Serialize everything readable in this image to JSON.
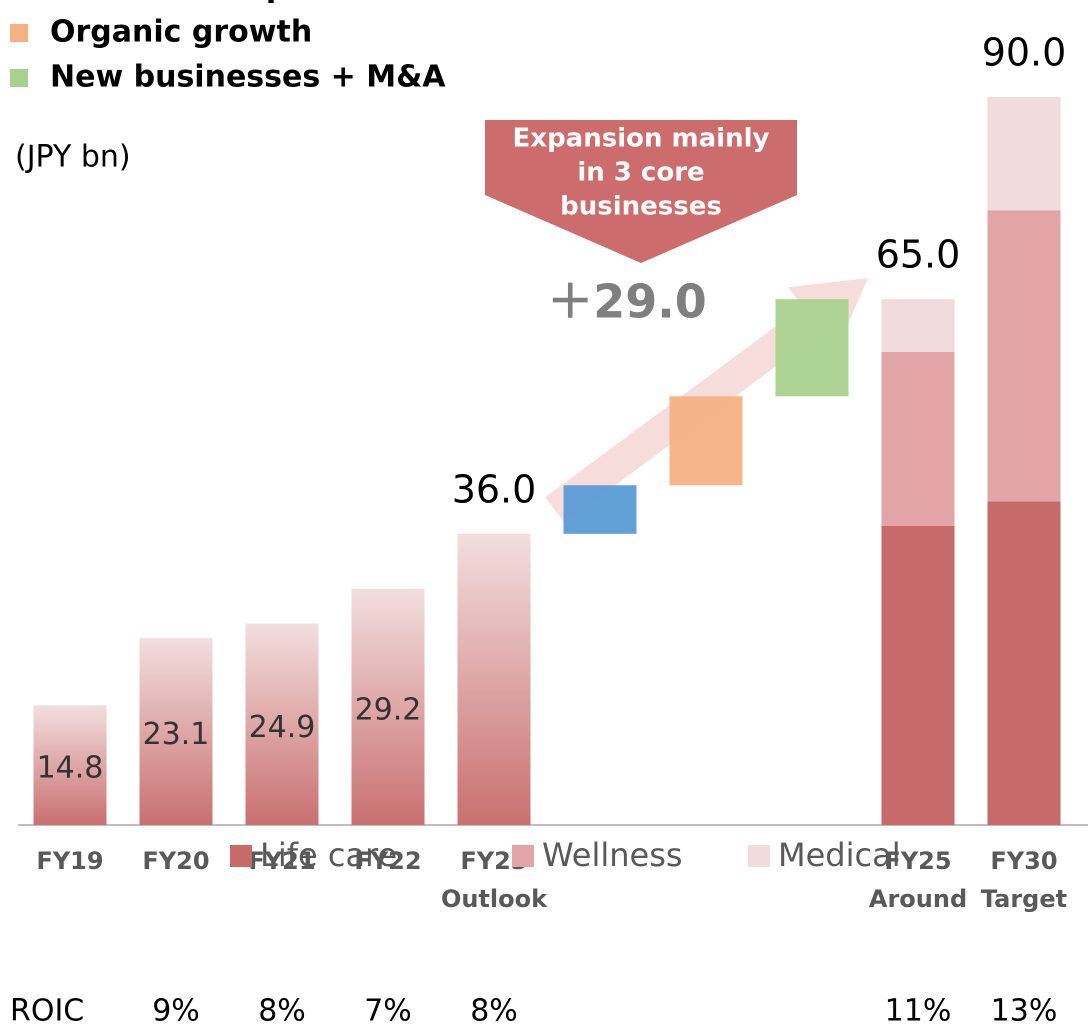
{
  "chart_data": {
    "type": "bar",
    "unit_label": "(JPY bn)",
    "categories": [
      "FY19",
      "FY20",
      "FY21",
      "FY22",
      [
        "FY23",
        "Outlook"
      ],
      null,
      null,
      null,
      [
        "FY25",
        "Around"
      ],
      [
        "FY30",
        "Target"
      ]
    ],
    "totals": [
      14.8,
      23.1,
      24.9,
      29.2,
      36.0,
      null,
      null,
      null,
      65.0,
      90.0
    ],
    "total_labels": [
      "14.8",
      "23.1",
      "24.9",
      "29.2",
      "36.0",
      null,
      null,
      null,
      "65.0",
      "90.0"
    ],
    "series": [
      {
        "name": "Life care",
        "color": "#c96a6a",
        "values": [
          null,
          null,
          null,
          null,
          null,
          null,
          null,
          null,
          37,
          40
        ]
      },
      {
        "name": "Wellness",
        "color": "#e2a4a6",
        "values": [
          null,
          null,
          null,
          null,
          null,
          null,
          null,
          null,
          21.5,
          36
        ]
      },
      {
        "name": "Medical",
        "color": "#f1dbdc",
        "values": [
          null,
          null,
          null,
          null,
          null,
          null,
          null,
          null,
          6.5,
          14
        ]
      }
    ],
    "waterfall": [
      {
        "name": "Return from previous investments",
        "color": "#5b9bd5",
        "value": 6
      },
      {
        "name": "Organic growth",
        "color": "#f4b183",
        "value": 11
      },
      {
        "name": "New businesses + M&A",
        "color": "#a9d18e",
        "value": 12
      }
    ],
    "change": {
      "value": 29,
      "label": "＋29.0"
    },
    "callout": [
      "Expansion mainly",
      "in 3 core",
      "businesses"
    ],
    "roic": {
      "label": "ROIC",
      "values": [
        null,
        9,
        8,
        7,
        8,
        null,
        null,
        null,
        11,
        13
      ],
      "value_labels": [
        null,
        "9%",
        "8%",
        "7%",
        "8%",
        null,
        null,
        null,
        "11%",
        "13%"
      ]
    },
    "ylim": [
      0,
      90
    ]
  }
}
